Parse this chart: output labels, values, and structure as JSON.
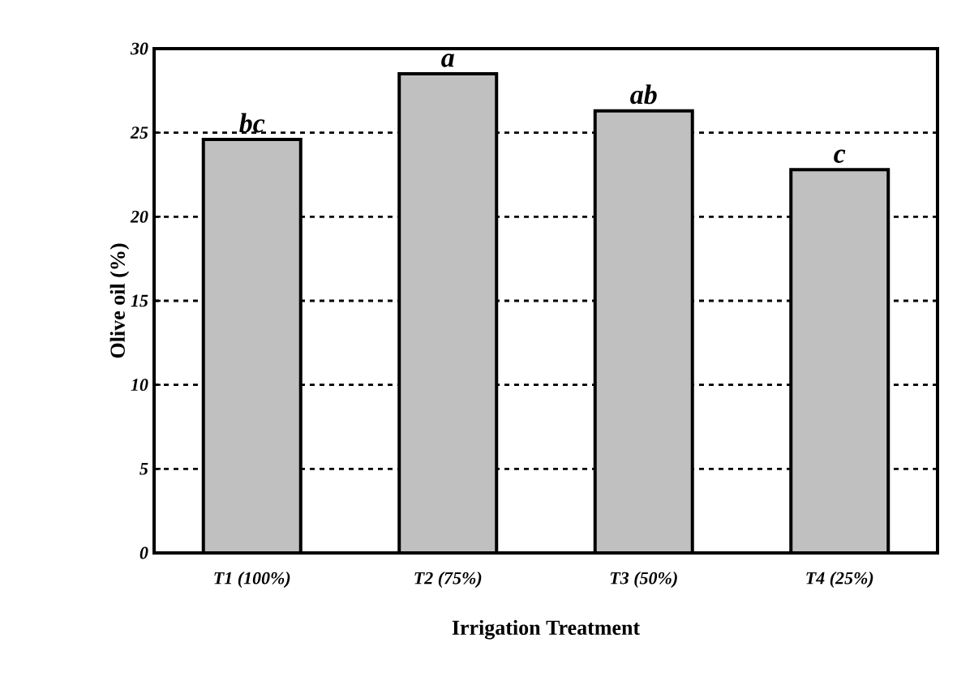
{
  "chart_data": {
    "type": "bar",
    "xlabel": "Irrigation Treatment",
    "ylabel": "Olive oil  (%)",
    "categories": [
      "T1 (100%)",
      "T2 (75%)",
      "T3 (50%)",
      "T4 (25%)"
    ],
    "values": [
      24.6,
      28.5,
      26.3,
      22.8
    ],
    "color": "#c0c0c0",
    "ylim": [
      0,
      30
    ],
    "yticks": [
      0,
      5,
      10,
      15,
      20,
      25,
      30
    ],
    "grid": "y",
    "annotations": [
      {
        "text": "bc",
        "x": "T1 (100%)",
        "y": 24.6
      },
      {
        "text": "a",
        "x": "T2 (75%)",
        "y": 28.5
      },
      {
        "text": "ab",
        "x": "T3 (50%)",
        "y": 26.3
      },
      {
        "text": "c",
        "x": "T4 (25%)",
        "y": 22.8
      }
    ]
  }
}
